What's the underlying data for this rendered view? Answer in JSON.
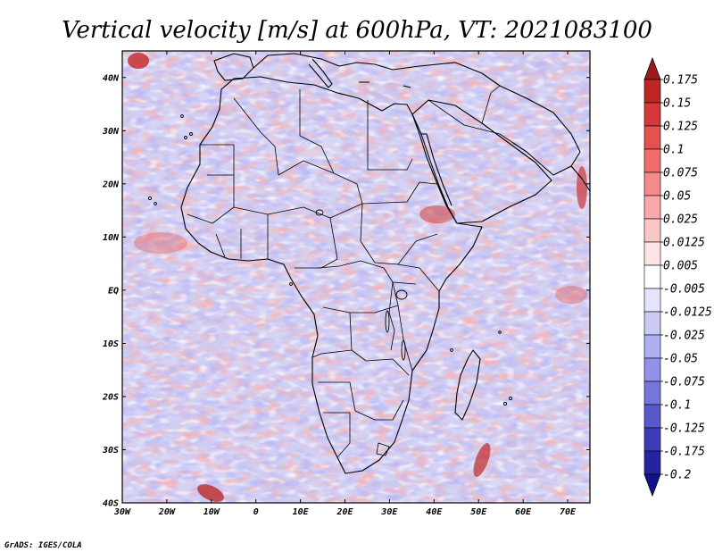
{
  "title": "Vertical velocity [m/s] at 600hPa, VT: 2021083100",
  "credit": "GrADS: IGES/COLA",
  "map": {
    "lat_labels": [
      "40N",
      "30N",
      "20N",
      "10N",
      "EQ",
      "10S",
      "20S",
      "30S",
      "40S"
    ],
    "lat_values": [
      40,
      30,
      20,
      10,
      0,
      -10,
      -20,
      -30,
      -40
    ],
    "lon_labels": [
      "30W",
      "20W",
      "10W",
      "0",
      "10E",
      "20E",
      "30E",
      "40E",
      "50E",
      "60E",
      "70E"
    ],
    "lon_values": [
      -30,
      -20,
      -10,
      0,
      10,
      20,
      30,
      40,
      50,
      60,
      70
    ],
    "lon_range": [
      -30,
      75
    ],
    "lat_range": [
      -40,
      45
    ]
  },
  "colorbar": {
    "labels": [
      "0.175",
      "0.15",
      "0.125",
      "0.1",
      "0.075",
      "0.05",
      "0.025",
      "0.0125",
      "0.005",
      "-0.005",
      "-0.0125",
      "-0.025",
      "-0.05",
      "-0.075",
      "-0.1",
      "-0.125",
      "-0.175",
      "-0.2"
    ],
    "colors": [
      "#a01818",
      "#be2525",
      "#d53838",
      "#e55151",
      "#ee6d6d",
      "#f48a8a",
      "#f8a8a8",
      "#fbc6c6",
      "#fde4e4",
      "#ffffff",
      "#e4e4fb",
      "#c9c9f6",
      "#aeaef1",
      "#9292e8",
      "#7676dc",
      "#5959cc",
      "#3c3cb8",
      "#2424a0",
      "#12128a"
    ]
  }
}
